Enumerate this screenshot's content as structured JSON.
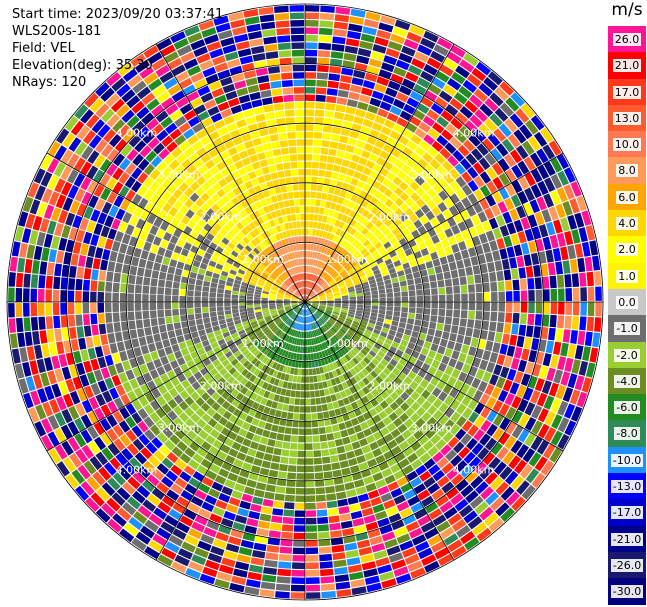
{
  "header": {
    "start_time_label": "Start time:",
    "start_time": "2023/09/20 03:37:41",
    "instrument": "WLS200s-181",
    "field_label": "Field:",
    "field": "VEL",
    "elevation_label": "Elevation(deg):",
    "elevation": "35.30",
    "nrays_label": "NRays:",
    "nrays": "120"
  },
  "colorbar": {
    "unit": "m/s",
    "ticks": [
      "26.0",
      "21.0",
      "17.0",
      "13.0",
      "10.0",
      "8.0",
      "6.0",
      "4.0",
      "2.0",
      "1.0",
      "0.0",
      "-1.0",
      "-2.0",
      "-4.0",
      "-6.0",
      "-8.0",
      "-10.0",
      "-13.0",
      "-17.0",
      "-21.0",
      "-26.0",
      "-30.0"
    ],
    "colors": [
      "#ff1493",
      "#ff0000",
      "#ff3a1a",
      "#ff5a30",
      "#ff7a50",
      "#ff9a5a",
      "#ffa500",
      "#ffd700",
      "#ffff00",
      "#fff400",
      "#c8c8c8",
      "#6e6e6e",
      "#9acd32",
      "#6b8e23",
      "#228b22",
      "#2e8b57",
      "#1e90ff",
      "#0000ff",
      "#0000cd",
      "#00008b",
      "#191970",
      "#000080"
    ]
  },
  "chart_data": {
    "type": "ppi",
    "field": "VEL",
    "unit": "m/s",
    "nrays": 120,
    "range_rings_km": [
      1.0,
      2.0,
      3.0,
      4.0,
      5.0
    ],
    "ring_labels": [
      "1.00km",
      "2.00km",
      "3.00km",
      "4.00km",
      "5.00km"
    ],
    "max_range_km": 5.0,
    "elevation_deg": 35.3,
    "field_regions": [
      {
        "region": "near range, north",
        "range_km": [
          0.0,
          1.1
        ],
        "velocity_ms": [
          4.0,
          17.0
        ]
      },
      {
        "region": "mid range, north",
        "range_km": [
          1.1,
          3.4
        ],
        "velocity_ms": [
          1.0,
          4.0
        ]
      },
      {
        "region": "near range, south",
        "range_km": [
          0.0,
          1.1
        ],
        "velocity_ms": [
          -10.0,
          -4.0
        ]
      },
      {
        "region": "mid range, south",
        "range_km": [
          1.1,
          3.4
        ],
        "velocity_ms": [
          -4.0,
          -1.0
        ]
      },
      {
        "region": "east/west sectors",
        "range_km": [
          0.8,
          3.0
        ],
        "velocity_ms": [
          -1.0,
          0.0
        ]
      },
      {
        "region": "far range (noise)",
        "range_km": [
          3.4,
          5.0
        ],
        "velocity_ms": [
          -30.0,
          26.0
        ]
      }
    ]
  }
}
